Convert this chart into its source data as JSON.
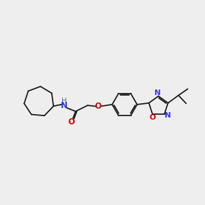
{
  "bg_color": "#eeeeee",
  "bond_color": "#1a1a1a",
  "N_color": "#3333ff",
  "O_color": "#dd0000",
  "NH_color": "#337777",
  "figsize": [
    3.0,
    3.0
  ],
  "dpi": 100,
  "xlim": [
    0,
    10
  ],
  "ylim": [
    0,
    10
  ],
  "bond_lw": 1.3
}
